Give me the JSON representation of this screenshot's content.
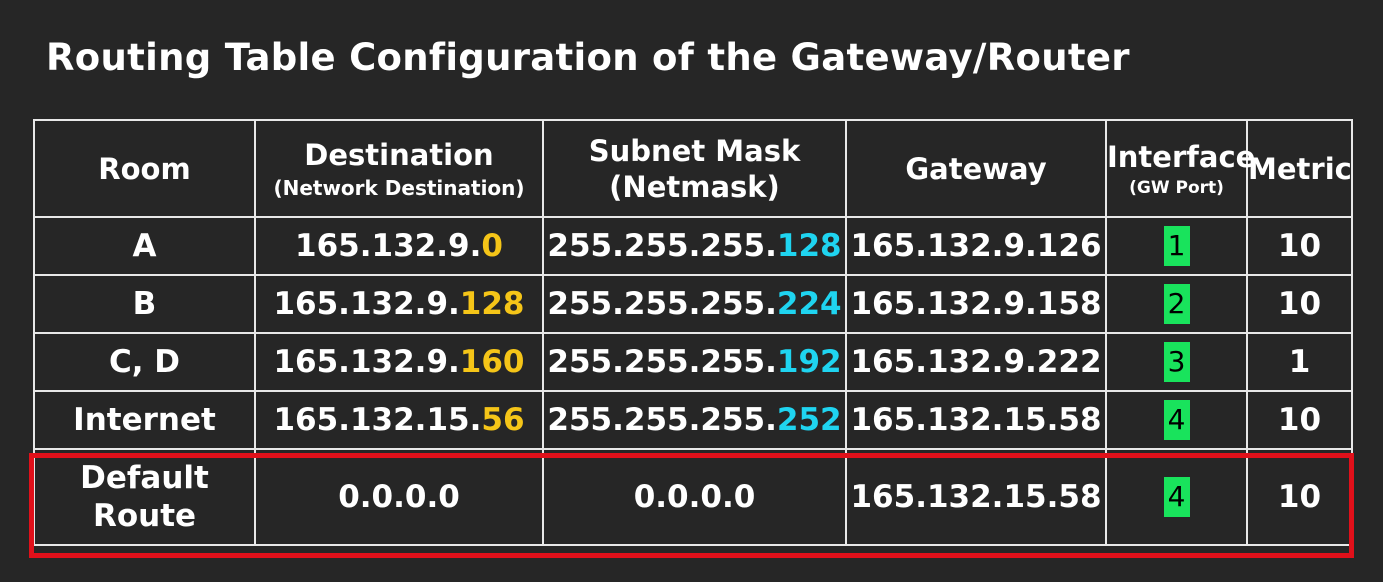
{
  "title": "Routing Table Configuration of the Gateway/Router",
  "header": {
    "room": "Room",
    "destination": "Destination",
    "destination_sub": "(Network Destination)",
    "subnet_mask": "Subnet Mask",
    "subnet_mask_sub": "(Netmask)",
    "gateway": "Gateway",
    "interface": "Interface",
    "interface_sub": "(GW Port)",
    "metric": "Metric"
  },
  "rows": [
    {
      "room": "A",
      "dest_prefix": "165.132.9.",
      "dest_suffix": "0",
      "mask_prefix": "255.255.255.",
      "mask_suffix": "128",
      "gateway": "165.132.9.126",
      "port": "1",
      "metric": "10"
    },
    {
      "room": "B",
      "dest_prefix": "165.132.9.",
      "dest_suffix": "128",
      "mask_prefix": "255.255.255.",
      "mask_suffix": "224",
      "gateway": "165.132.9.158",
      "port": "2",
      "metric": "10"
    },
    {
      "room": "C, D",
      "dest_prefix": "165.132.9.",
      "dest_suffix": "160",
      "mask_prefix": "255.255.255.",
      "mask_suffix": "192",
      "gateway": "165.132.9.222",
      "port": "3",
      "metric": "1"
    },
    {
      "room": "Internet",
      "dest_prefix": "165.132.15.",
      "dest_suffix": "56",
      "mask_prefix": "255.255.255.",
      "mask_suffix": "252",
      "gateway": "165.132.15.58",
      "port": "4",
      "metric": "10"
    }
  ],
  "default_route": {
    "room_line1": "Default",
    "room_line2": "Route",
    "destination": "0.0.0.0",
    "mask": "0.0.0.0",
    "gateway": "165.132.15.58",
    "port": "4",
    "metric": "10"
  },
  "colors": {
    "background": "#262626",
    "host_highlight": "#f5c518",
    "mask_highlight": "#1fd4f0",
    "port_badge": "#19e35c",
    "default_route_box": "#e0101a"
  }
}
